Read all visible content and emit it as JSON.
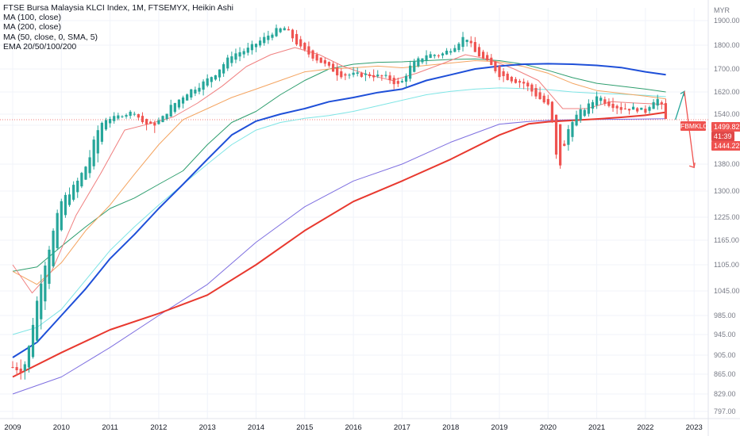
{
  "legend": {
    "title": "FTSE Bursa Malaysia KLCI Index, 1M, FTSEMYX, Heikin Ashi",
    "ind1": "MA (100, close)",
    "ind2": "MA (200, close)",
    "ind3": "MA (50, close, 0, SMA, 5)",
    "ind4": "EMA 20/50/100/200"
  },
  "price_panel": {
    "unit": "MYR",
    "symbol_tag": "FBMKLCI",
    "last_price": "1499.82",
    "countdown": "41:39",
    "open_price": "1444.22"
  },
  "colors": {
    "up": "#26a69a",
    "down": "#ef5350",
    "ma100": "#1e4fd8",
    "ma200": "#e8392f",
    "ma50_sma": "#7e6fe0",
    "ema20": "#f08080",
    "ema50": "#f4a460",
    "ema100": "#2e9e6e",
    "ema200": "#7fe5e5",
    "projection_up": "#26a69a",
    "projection_down": "#ef5350"
  },
  "chart_data": {
    "type": "candlestick",
    "title": "FTSE Bursa Malaysia KLCI Index, 1M, FTSEMYX, Heikin Ashi",
    "y_ticks": [
      797,
      829,
      865,
      905,
      945,
      985,
      1045,
      1105,
      1165,
      1225,
      1300,
      1380,
      1460,
      1540,
      1620,
      1700,
      1800,
      1900
    ],
    "y_tick_labels": [
      "797.00",
      "829.00",
      "865.00",
      "905.00",
      "945.00",
      "985.00",
      "1045.00",
      "1105.00",
      "1165.00",
      "1225.00",
      "1300.00",
      "1380.00",
      "1460.00",
      "1540.00",
      "1620.00",
      "1700.00",
      "1800.00",
      "1900.00"
    ],
    "x_ticks": [
      "2009",
      "2010",
      "2011",
      "2012",
      "2013",
      "2014",
      "2015",
      "2016",
      "2017",
      "2018",
      "2019",
      "2020",
      "2021",
      "2022",
      "2023"
    ],
    "close_waypoints": [
      [
        2009.0,
        880
      ],
      [
        2009.2,
        875
      ],
      [
        2009.3,
        900
      ],
      [
        2009.4,
        960
      ],
      [
        2009.6,
        1080
      ],
      [
        2009.8,
        1170
      ],
      [
        2010.0,
        1270
      ],
      [
        2010.3,
        1320
      ],
      [
        2010.6,
        1400
      ],
      [
        2010.9,
        1500
      ],
      [
        2011.2,
        1530
      ],
      [
        2011.5,
        1550
      ],
      [
        2011.7,
        1470
      ],
      [
        2011.9,
        1460
      ],
      [
        2012.2,
        1560
      ],
      [
        2012.6,
        1620
      ],
      [
        2012.9,
        1650
      ],
      [
        2013.2,
        1690
      ],
      [
        2013.5,
        1760
      ],
      [
        2013.8,
        1780
      ],
      [
        2014.1,
        1820
      ],
      [
        2014.4,
        1860
      ],
      [
        2014.6,
        1870
      ],
      [
        2014.9,
        1790
      ],
      [
        2015.1,
        1760
      ],
      [
        2015.4,
        1720
      ],
      [
        2015.7,
        1680
      ],
      [
        2016.0,
        1680
      ],
      [
        2016.3,
        1680
      ],
      [
        2016.7,
        1670
      ],
      [
        2016.95,
        1640
      ],
      [
        2017.2,
        1720
      ],
      [
        2017.5,
        1760
      ],
      [
        2017.8,
        1760
      ],
      [
        2018.05,
        1790
      ],
      [
        2018.3,
        1840
      ],
      [
        2018.5,
        1770
      ],
      [
        2018.8,
        1720
      ],
      [
        2019.0,
        1680
      ],
      [
        2019.3,
        1660
      ],
      [
        2019.5,
        1650
      ],
      [
        2019.8,
        1600
      ],
      [
        2020.0,
        1570
      ],
      [
        2020.2,
        1360
      ],
      [
        2020.35,
        1420
      ],
      [
        2020.6,
        1540
      ],
      [
        2020.9,
        1580
      ],
      [
        2021.0,
        1610
      ],
      [
        2021.2,
        1580
      ],
      [
        2021.5,
        1560
      ],
      [
        2021.8,
        1560
      ],
      [
        2022.0,
        1550
      ],
      [
        2022.15,
        1590
      ],
      [
        2022.3,
        1595
      ],
      [
        2022.42,
        1499.82
      ]
    ],
    "series": [
      {
        "name": "MA (100, close)",
        "points": [
          [
            2009.0,
            900
          ],
          [
            2009.5,
            930
          ],
          [
            2010.0,
            985
          ],
          [
            2010.5,
            1050
          ],
          [
            2011.0,
            1120
          ],
          [
            2011.5,
            1180
          ],
          [
            2012.0,
            1250
          ],
          [
            2012.5,
            1320
          ],
          [
            2013.0,
            1390
          ],
          [
            2013.5,
            1440
          ],
          [
            2014.0,
            1490
          ],
          [
            2014.5,
            1540
          ],
          [
            2015.0,
            1560
          ],
          [
            2015.5,
            1585
          ],
          [
            2016.0,
            1600
          ],
          [
            2016.5,
            1618
          ],
          [
            2017.0,
            1630
          ],
          [
            2017.5,
            1660
          ],
          [
            2018.0,
            1680
          ],
          [
            2018.5,
            1700
          ],
          [
            2019.0,
            1712
          ],
          [
            2019.5,
            1720
          ],
          [
            2020.0,
            1722
          ],
          [
            2020.5,
            1720
          ],
          [
            2021.0,
            1715
          ],
          [
            2021.5,
            1706
          ],
          [
            2022.0,
            1690
          ],
          [
            2022.42,
            1680
          ]
        ]
      },
      {
        "name": "MA (200, close)",
        "points": [
          [
            2009.0,
            860
          ],
          [
            2010.0,
            910
          ],
          [
            2011.0,
            955
          ],
          [
            2012.0,
            990
          ],
          [
            2013.0,
            1035
          ],
          [
            2014.0,
            1105
          ],
          [
            2015.0,
            1190
          ],
          [
            2016.0,
            1270
          ],
          [
            2017.0,
            1330
          ],
          [
            2018.0,
            1390
          ],
          [
            2019.0,
            1440
          ],
          [
            2019.6,
            1470
          ],
          [
            2020.0,
            1485
          ],
          [
            2020.5,
            1495
          ],
          [
            2021.0,
            1505
          ],
          [
            2021.5,
            1517
          ],
          [
            2022.0,
            1532
          ],
          [
            2022.42,
            1547
          ]
        ]
      },
      {
        "name": "MA (50, close, 0, SMA, 5)",
        "points": [
          [
            2009.0,
            829
          ],
          [
            2010.0,
            860
          ],
          [
            2011.0,
            920
          ],
          [
            2012.0,
            985
          ],
          [
            2013.0,
            1060
          ],
          [
            2014.0,
            1160
          ],
          [
            2015.0,
            1255
          ],
          [
            2016.0,
            1330
          ],
          [
            2017.0,
            1380
          ],
          [
            2018.0,
            1425
          ],
          [
            2019.0,
            1468
          ],
          [
            2019.6,
            1487
          ],
          [
            2020.0,
            1495
          ],
          [
            2020.5,
            1500
          ],
          [
            2021.0,
            1502
          ],
          [
            2021.5,
            1503
          ],
          [
            2022.0,
            1505
          ],
          [
            2022.42,
            1507
          ]
        ]
      },
      {
        "name": "EMA 20",
        "points": [
          [
            2009.0,
            1105
          ],
          [
            2009.4,
            1040
          ],
          [
            2009.8,
            1090
          ],
          [
            2010.3,
            1230
          ],
          [
            2010.8,
            1350
          ],
          [
            2011.3,
            1450
          ],
          [
            2011.8,
            1470
          ],
          [
            2012.3,
            1520
          ],
          [
            2012.8,
            1580
          ],
          [
            2013.3,
            1640
          ],
          [
            2013.8,
            1710
          ],
          [
            2014.3,
            1760
          ],
          [
            2014.8,
            1790
          ],
          [
            2015.3,
            1760
          ],
          [
            2015.8,
            1710
          ],
          [
            2016.3,
            1680
          ],
          [
            2016.8,
            1660
          ],
          [
            2017.3,
            1685
          ],
          [
            2017.8,
            1720
          ],
          [
            2018.3,
            1760
          ],
          [
            2018.8,
            1740
          ],
          [
            2019.3,
            1700
          ],
          [
            2019.8,
            1660
          ],
          [
            2020.3,
            1560
          ],
          [
            2020.8,
            1560
          ],
          [
            2021.3,
            1585
          ],
          [
            2021.8,
            1580
          ],
          [
            2022.42,
            1575
          ]
        ]
      },
      {
        "name": "EMA 50",
        "points": [
          [
            2009.0,
            1090
          ],
          [
            2009.5,
            1060
          ],
          [
            2010.0,
            1110
          ],
          [
            2010.5,
            1190
          ],
          [
            2011.0,
            1260
          ],
          [
            2011.5,
            1350
          ],
          [
            2012.0,
            1420
          ],
          [
            2012.5,
            1500
          ],
          [
            2013.0,
            1560
          ],
          [
            2013.5,
            1600
          ],
          [
            2014.0,
            1630
          ],
          [
            2014.5,
            1660
          ],
          [
            2015.0,
            1690
          ],
          [
            2015.5,
            1700
          ],
          [
            2016.0,
            1705
          ],
          [
            2016.5,
            1712
          ],
          [
            2017.0,
            1705
          ],
          [
            2017.5,
            1715
          ],
          [
            2018.0,
            1725
          ],
          [
            2018.5,
            1735
          ],
          [
            2019.0,
            1730
          ],
          [
            2019.5,
            1710
          ],
          [
            2020.0,
            1685
          ],
          [
            2020.5,
            1650
          ],
          [
            2021.0,
            1625
          ],
          [
            2021.5,
            1615
          ],
          [
            2022.0,
            1605
          ],
          [
            2022.42,
            1595
          ]
        ]
      },
      {
        "name": "EMA 100",
        "points": [
          [
            2009.0,
            1090
          ],
          [
            2009.5,
            1100
          ],
          [
            2010.0,
            1150
          ],
          [
            2010.5,
            1200
          ],
          [
            2011.0,
            1250
          ],
          [
            2011.5,
            1280
          ],
          [
            2012.0,
            1320
          ],
          [
            2012.5,
            1360
          ],
          [
            2013.0,
            1420
          ],
          [
            2013.5,
            1480
          ],
          [
            2014.0,
            1550
          ],
          [
            2014.5,
            1610
          ],
          [
            2015.0,
            1660
          ],
          [
            2015.5,
            1700
          ],
          [
            2016.0,
            1720
          ],
          [
            2016.5,
            1728
          ],
          [
            2017.0,
            1730
          ],
          [
            2017.5,
            1735
          ],
          [
            2018.0,
            1740
          ],
          [
            2018.5,
            1742
          ],
          [
            2019.0,
            1735
          ],
          [
            2019.5,
            1720
          ],
          [
            2020.0,
            1695
          ],
          [
            2020.5,
            1670
          ],
          [
            2021.0,
            1650
          ],
          [
            2021.5,
            1640
          ],
          [
            2022.0,
            1630
          ],
          [
            2022.42,
            1620
          ]
        ]
      },
      {
        "name": "EMA 200",
        "points": [
          [
            2009.0,
            945
          ],
          [
            2009.5,
            960
          ],
          [
            2010.0,
            1000
          ],
          [
            2010.5,
            1070
          ],
          [
            2011.0,
            1140
          ],
          [
            2011.5,
            1200
          ],
          [
            2012.0,
            1260
          ],
          [
            2012.5,
            1320
          ],
          [
            2013.0,
            1380
          ],
          [
            2013.5,
            1420
          ],
          [
            2014.0,
            1450
          ],
          [
            2014.5,
            1480
          ],
          [
            2015.0,
            1510
          ],
          [
            2015.5,
            1530
          ],
          [
            2016.0,
            1550
          ],
          [
            2016.5,
            1570
          ],
          [
            2017.0,
            1590
          ],
          [
            2017.5,
            1610
          ],
          [
            2018.0,
            1622
          ],
          [
            2018.5,
            1630
          ],
          [
            2019.0,
            1634
          ],
          [
            2019.5,
            1632
          ],
          [
            2020.0,
            1628
          ],
          [
            2020.5,
            1620
          ],
          [
            2021.0,
            1615
          ],
          [
            2021.5,
            1612
          ],
          [
            2022.0,
            1608
          ],
          [
            2022.42,
            1603
          ]
        ]
      }
    ],
    "projection": {
      "start": [
        2022.42,
        1500
      ],
      "up_end": [
        2022.8,
        1622
      ],
      "down_end": [
        2023.0,
        1370
      ]
    },
    "current_price_line": 1499.82
  }
}
